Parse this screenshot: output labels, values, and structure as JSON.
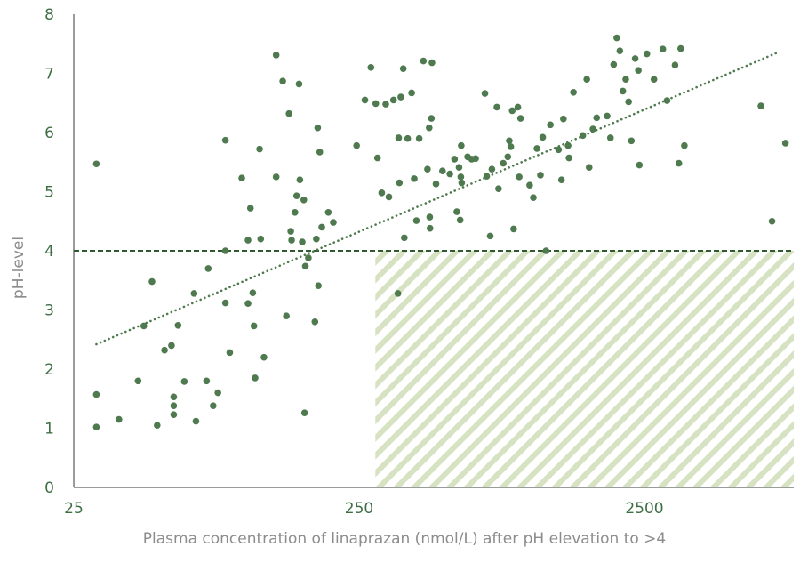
{
  "colors": {
    "point": "#4f7a4f",
    "trendline": "#4f7a4f",
    "threshold": "#2f5a2f",
    "hatch": "#d6e2c2",
    "axis": "#7a7a7a",
    "tick_text": "#3f6e44",
    "axis_title_text": "#8c8c8c"
  },
  "chart_data": {
    "type": "scatter",
    "title": "",
    "xlabel": "Plasma concentration of linaprazan (nmol/L) after pH elevation to >4",
    "ylabel": "pH-level",
    "x_scale": "log",
    "xlim": [
      25,
      10000
    ],
    "ylim": [
      0,
      8
    ],
    "x_ticks": [
      25,
      250,
      2500
    ],
    "x_tick_labels": [
      "25",
      "250",
      "2500"
    ],
    "y_ticks": [
      0,
      1,
      2,
      3,
      4,
      5,
      6,
      7,
      8
    ],
    "y_tick_labels": [
      "0",
      "1",
      "2",
      "3",
      "4",
      "5",
      "6",
      "7",
      "8"
    ],
    "grid": false,
    "threshold_line": {
      "y": 4,
      "style": "dashed"
    },
    "shaded_region": {
      "x_from": 285,
      "x_to": 10000,
      "y_from": 0,
      "y_to": 4,
      "pattern": "diagonal-hatch"
    },
    "trendline": {
      "style": "dotted",
      "points": [
        [
          30,
          2.42
        ],
        [
          7300,
          7.35
        ]
      ]
    },
    "series": [
      {
        "points": [
          [
            30,
            5.47
          ],
          [
            30,
            1.57
          ],
          [
            30,
            1.02
          ],
          [
            36,
            1.15
          ],
          [
            42,
            1.8
          ],
          [
            44,
            2.73
          ],
          [
            47,
            3.48
          ],
          [
            49,
            1.05
          ],
          [
            52,
            2.32
          ],
          [
            55,
            2.4
          ],
          [
            56,
            1.53
          ],
          [
            56,
            1.38
          ],
          [
            56,
            1.23
          ],
          [
            58,
            2.74
          ],
          [
            61,
            1.79
          ],
          [
            66,
            3.28
          ],
          [
            67,
            1.12
          ],
          [
            73,
            1.8
          ],
          [
            74,
            3.7
          ],
          [
            77,
            1.38
          ],
          [
            80,
            1.6
          ],
          [
            85,
            5.87
          ],
          [
            85,
            4.0
          ],
          [
            85,
            3.12
          ],
          [
            88,
            2.28
          ],
          [
            97,
            5.23
          ],
          [
            102,
            3.11
          ],
          [
            102,
            4.18
          ],
          [
            104,
            4.72
          ],
          [
            106,
            3.29
          ],
          [
            107,
            2.73
          ],
          [
            108,
            1.85
          ],
          [
            112,
            5.72
          ],
          [
            113,
            4.2
          ],
          [
            116,
            2.2
          ],
          [
            128,
            7.31
          ],
          [
            128,
            5.25
          ],
          [
            135,
            6.87
          ],
          [
            139,
            2.9
          ],
          [
            142,
            6.32
          ],
          [
            144,
            4.33
          ],
          [
            145,
            4.18
          ],
          [
            149,
            4.65
          ],
          [
            151,
            4.93
          ],
          [
            154,
            6.82
          ],
          [
            155,
            5.2
          ],
          [
            158,
            4.15
          ],
          [
            160,
            4.86
          ],
          [
            161,
            1.26
          ],
          [
            162,
            3.74
          ],
          [
            166,
            3.88
          ],
          [
            175,
            2.8
          ],
          [
            177,
            4.2
          ],
          [
            179,
            6.08
          ],
          [
            180,
            3.41
          ],
          [
            182,
            5.67
          ],
          [
            185,
            4.4
          ],
          [
            195,
            4.65
          ],
          [
            203,
            4.48
          ],
          [
            245,
            5.78
          ],
          [
            262,
            6.55
          ],
          [
            275,
            7.1
          ],
          [
            286,
            6.49
          ],
          [
            290,
            5.57
          ],
          [
            300,
            4.98
          ],
          [
            310,
            6.48
          ],
          [
            318,
            4.91
          ],
          [
            330,
            6.55
          ],
          [
            342,
            3.28
          ],
          [
            344,
            5.91
          ],
          [
            346,
            5.15
          ],
          [
            350,
            6.6
          ],
          [
            357,
            7.08
          ],
          [
            360,
            4.22
          ],
          [
            370,
            5.9
          ],
          [
            382,
            6.67
          ],
          [
            390,
            5.22
          ],
          [
            397,
            4.51
          ],
          [
            406,
            5.9
          ],
          [
            420,
            7.21
          ],
          [
            434,
            5.38
          ],
          [
            440,
            6.08
          ],
          [
            442,
            4.57
          ],
          [
            443,
            4.38
          ],
          [
            448,
            6.24
          ],
          [
            450,
            7.18
          ],
          [
            465,
            5.13
          ],
          [
            490,
            5.35
          ],
          [
            520,
            5.3
          ],
          [
            540,
            5.55
          ],
          [
            550,
            4.66
          ],
          [
            560,
            5.41
          ],
          [
            565,
            4.52
          ],
          [
            568,
            5.25
          ],
          [
            570,
            5.78
          ],
          [
            572,
            5.15
          ],
          [
            600,
            5.59
          ],
          [
            620,
            5.55
          ],
          [
            640,
            5.56
          ],
          [
            690,
            6.66
          ],
          [
            700,
            5.26
          ],
          [
            720,
            4.25
          ],
          [
            730,
            5.38
          ],
          [
            760,
            6.43
          ],
          [
            770,
            5.05
          ],
          [
            800,
            5.48
          ],
          [
            830,
            5.59
          ],
          [
            840,
            5.86
          ],
          [
            850,
            5.76
          ],
          [
            860,
            6.37
          ],
          [
            870,
            4.37
          ],
          [
            900,
            6.43
          ],
          [
            910,
            5.25
          ],
          [
            920,
            6.24
          ],
          [
            990,
            5.11
          ],
          [
            1020,
            4.9
          ],
          [
            1050,
            5.73
          ],
          [
            1080,
            5.28
          ],
          [
            1100,
            5.92
          ],
          [
            1130,
            4.0
          ],
          [
            1170,
            6.13
          ],
          [
            1250,
            5.71
          ],
          [
            1280,
            5.2
          ],
          [
            1300,
            6.23
          ],
          [
            1350,
            5.78
          ],
          [
            1360,
            5.57
          ],
          [
            1410,
            6.68
          ],
          [
            1520,
            5.95
          ],
          [
            1570,
            6.9
          ],
          [
            1600,
            5.41
          ],
          [
            1650,
            6.06
          ],
          [
            1700,
            6.25
          ],
          [
            1850,
            6.28
          ],
          [
            1900,
            5.91
          ],
          [
            1950,
            7.15
          ],
          [
            2000,
            7.6
          ],
          [
            2050,
            7.38
          ],
          [
            2100,
            6.7
          ],
          [
            2150,
            6.9
          ],
          [
            2200,
            6.52
          ],
          [
            2250,
            5.86
          ],
          [
            2320,
            7.25
          ],
          [
            2380,
            7.05
          ],
          [
            2400,
            5.45
          ],
          [
            2550,
            7.33
          ],
          [
            2700,
            6.9
          ],
          [
            2900,
            7.41
          ],
          [
            3000,
            6.54
          ],
          [
            3200,
            7.14
          ],
          [
            3300,
            5.48
          ],
          [
            3350,
            7.42
          ],
          [
            3450,
            5.78
          ],
          [
            6400,
            6.45
          ],
          [
            7000,
            4.5
          ],
          [
            7800,
            5.82
          ]
        ]
      }
    ]
  }
}
